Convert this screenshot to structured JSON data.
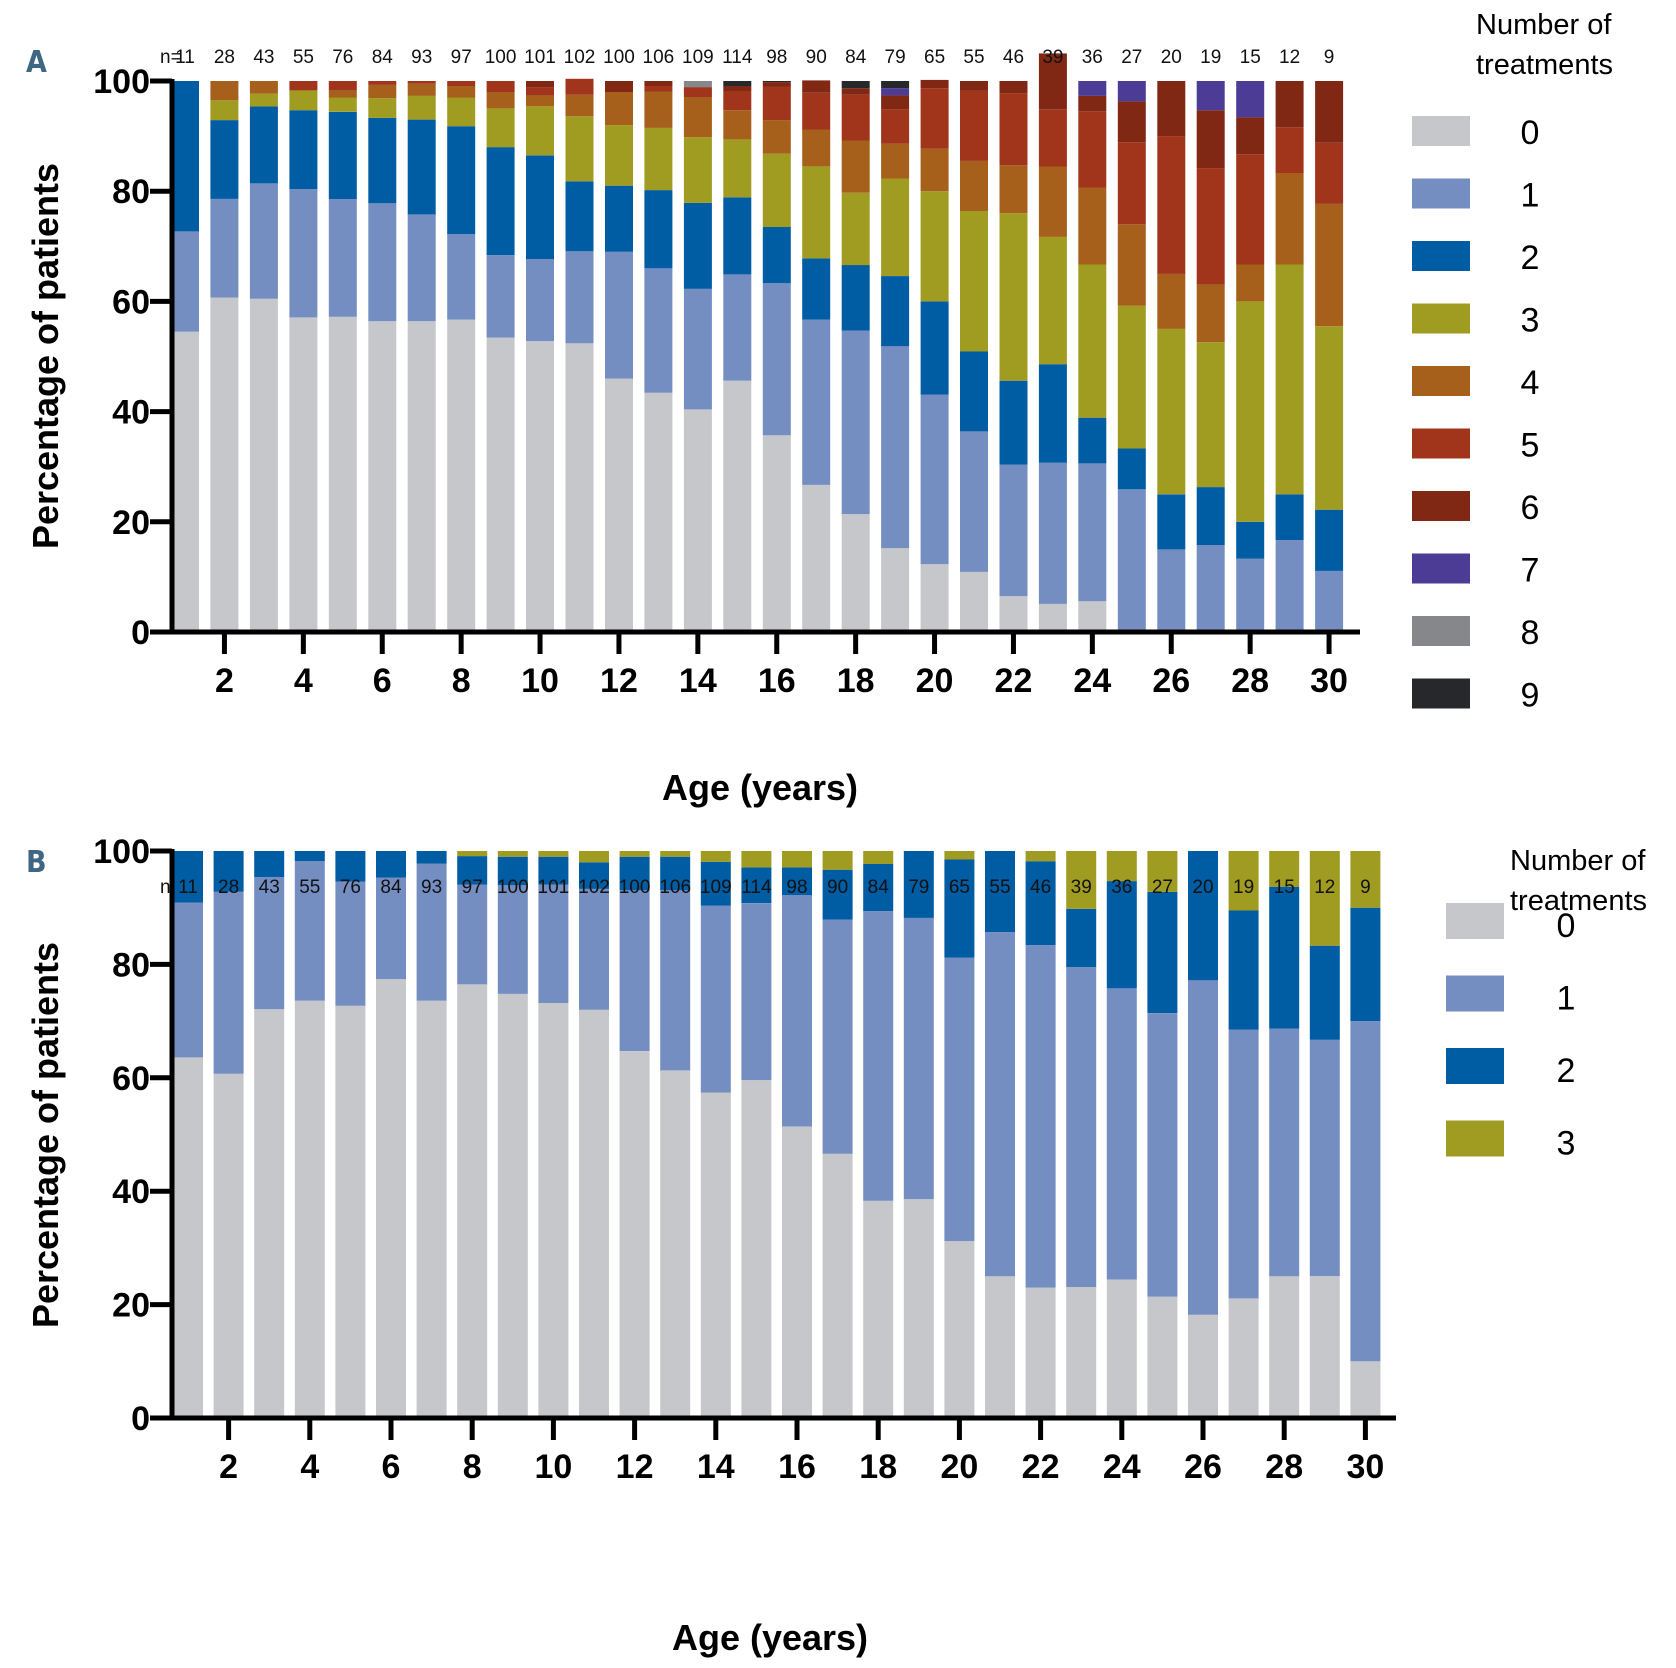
{
  "colors": {
    "0": "#c5c7cb",
    "1": "#758ec2",
    "2": "#005ca3",
    "3": "#a09c22",
    "4": "#a6601b",
    "5": "#a0351b",
    "6": "#812815",
    "7": "#4d3c96",
    "8": "#86878b",
    "9": "#27282c"
  },
  "chart_data": [
    {
      "panel": "A",
      "type": "bar",
      "stacked": true,
      "xlabel": "Age (years)",
      "ylabel": "Percentage of patients",
      "ylim": [
        0,
        100
      ],
      "yticks": [
        0,
        20,
        40,
        60,
        80,
        100
      ],
      "xticks": [
        2,
        4,
        6,
        8,
        10,
        12,
        14,
        16,
        18,
        20,
        22,
        24,
        26,
        28,
        30
      ],
      "n_prefix": "n=",
      "legend_title": [
        "Number of",
        "treatments"
      ],
      "legend_position": "right",
      "categories": [
        1,
        2,
        3,
        4,
        5,
        6,
        7,
        8,
        9,
        10,
        11,
        12,
        13,
        14,
        15,
        16,
        17,
        18,
        19,
        20,
        21,
        22,
        23,
        24,
        25,
        26,
        27,
        28,
        29,
        30
      ],
      "n": [
        11,
        28,
        43,
        55,
        76,
        84,
        93,
        97,
        100,
        101,
        102,
        100,
        106,
        109,
        114,
        98,
        90,
        84,
        79,
        65,
        55,
        46,
        39,
        36,
        27,
        20,
        19,
        15,
        12,
        9
      ],
      "series": [
        {
          "name": "0",
          "values": [
            54.5,
            60.7,
            60.5,
            57.1,
            57.2,
            56.4,
            56.4,
            56.7,
            53.4,
            52.8,
            52.4,
            46.0,
            43.4,
            40.4,
            45.6,
            35.7,
            26.7,
            21.4,
            15.2,
            12.3,
            10.9,
            6.5,
            5.1,
            5.6,
            0,
            0,
            0,
            0,
            0,
            0
          ]
        },
        {
          "name": "1",
          "values": [
            18.2,
            17.9,
            20.9,
            23.3,
            21.4,
            21.4,
            19.4,
            15.5,
            15.0,
            14.9,
            16.7,
            23.0,
            22.6,
            21.9,
            19.3,
            27.6,
            30.0,
            33.3,
            36.7,
            30.8,
            25.5,
            23.9,
            25.6,
            25.0,
            25.9,
            15.0,
            15.8,
            13.3,
            16.7,
            11.1
          ]
        },
        {
          "name": "2",
          "values": [
            27.3,
            14.3,
            14.0,
            14.3,
            15.8,
            15.5,
            17.2,
            19.6,
            19.6,
            18.8,
            12.7,
            12.0,
            14.2,
            15.6,
            14.0,
            10.2,
            11.1,
            11.9,
            12.7,
            16.9,
            14.5,
            15.2,
            17.9,
            8.3,
            7.4,
            10.0,
            10.5,
            6.7,
            8.3,
            11.1
          ]
        },
        {
          "name": "3",
          "values": [
            0,
            3.6,
            2.3,
            3.6,
            2.6,
            3.6,
            4.3,
            5.2,
            7.0,
            8.9,
            11.8,
            11.0,
            11.3,
            11.9,
            10.5,
            13.3,
            16.7,
            13.1,
            17.7,
            20.0,
            25.5,
            30.4,
            23.1,
            27.8,
            25.9,
            30.0,
            26.3,
            40.0,
            41.7,
            33.3
          ]
        },
        {
          "name": "4",
          "values": [
            0,
            3.5,
            2.3,
            0,
            1.3,
            2.4,
            2.2,
            2.1,
            3.0,
            2.0,
            3.9,
            6.0,
            6.6,
            7.3,
            5.3,
            6.1,
            6.7,
            9.5,
            6.3,
            7.7,
            9.1,
            8.7,
            12.8,
            13.9,
            14.8,
            10.0,
            10.5,
            6.7,
            16.6,
            22.2
          ]
        },
        {
          "name": "5",
          "values": [
            0,
            0,
            0,
            1.7,
            1.7,
            0.7,
            0.5,
            0.9,
            2.0,
            1.5,
            2.9,
            0,
            1.0,
            1.8,
            3.5,
            6.1,
            6.7,
            8.3,
            6.3,
            11.0,
            12.7,
            13.1,
            10.3,
            13.9,
            14.9,
            25.0,
            21.1,
            20.0,
            8.3,
            11.1
          ]
        },
        {
          "name": "6",
          "values": [
            0,
            0,
            0,
            0,
            0,
            0,
            0,
            0,
            0,
            1.1,
            0,
            2.0,
            0.9,
            0,
            0.9,
            0.8,
            2.2,
            1.2,
            2.5,
            1.5,
            1.8,
            2.2,
            10.2,
            2.8,
            7.4,
            10.0,
            10.5,
            6.7,
            8.4,
            11.2
          ]
        },
        {
          "name": "7",
          "values": [
            0,
            0,
            0,
            0,
            0,
            0,
            0,
            0,
            0,
            0,
            0,
            0,
            0,
            0,
            0,
            0,
            0,
            0,
            1.3,
            0,
            0,
            0,
            0,
            2.7,
            3.7,
            0,
            5.3,
            6.6,
            0,
            0
          ]
        },
        {
          "name": "8",
          "values": [
            0,
            0,
            0,
            0,
            0,
            0,
            0,
            0,
            0,
            0,
            0,
            0,
            0,
            1.1,
            0,
            0,
            0,
            0,
            0,
            0,
            0,
            0,
            0,
            0,
            0,
            0,
            0,
            0,
            0,
            0
          ]
        },
        {
          "name": "9",
          "values": [
            0,
            0,
            0,
            0,
            0,
            0,
            0,
            0,
            0,
            0,
            0,
            0,
            0,
            0,
            0.9,
            0.2,
            0,
            1.3,
            1.3,
            0,
            0,
            0,
            0,
            0,
            0,
            0,
            0,
            0,
            0,
            0
          ]
        }
      ]
    },
    {
      "panel": "B",
      "type": "bar",
      "stacked": true,
      "xlabel": "Age (years)",
      "ylabel": "Percentage of patients",
      "ylim": [
        0,
        100
      ],
      "yticks": [
        0,
        20,
        40,
        60,
        80,
        100
      ],
      "xticks": [
        2,
        4,
        6,
        8,
        10,
        12,
        14,
        16,
        18,
        20,
        22,
        24,
        26,
        28,
        30
      ],
      "n_prefix": "n=",
      "legend_title": [
        "Number of",
        "treatments"
      ],
      "legend_position": "right",
      "categories": [
        1,
        2,
        3,
        4,
        5,
        6,
        7,
        8,
        9,
        10,
        11,
        12,
        13,
        14,
        15,
        16,
        17,
        18,
        19,
        20,
        21,
        22,
        23,
        24,
        25,
        26,
        27,
        28,
        29,
        30
      ],
      "n": [
        11,
        28,
        43,
        55,
        76,
        84,
        93,
        97,
        100,
        101,
        102,
        100,
        106,
        109,
        114,
        98,
        90,
        84,
        79,
        65,
        55,
        46,
        39,
        36,
        27,
        20,
        19,
        15,
        12,
        9
      ],
      "series": [
        {
          "name": "0",
          "values": [
            63.6,
            60.7,
            72.1,
            73.6,
            72.7,
            77.4,
            73.6,
            76.5,
            74.8,
            73.2,
            72.0,
            64.7,
            61.3,
            57.4,
            59.6,
            51.4,
            46.6,
            38.3,
            38.6,
            31.2,
            25.0,
            23.0,
            23.1,
            24.4,
            21.4,
            18.2,
            21.1,
            25.0,
            25.0,
            10.0
          ]
        },
        {
          "name": "1",
          "values": [
            27.3,
            32.1,
            23.3,
            24.6,
            21.9,
            17.9,
            24.2,
            17.6,
            19.2,
            20.9,
            21.3,
            28.4,
            31.8,
            33.0,
            31.2,
            40.8,
            41.3,
            51.1,
            49.6,
            50.0,
            60.7,
            60.4,
            56.4,
            51.4,
            50.0,
            59.0,
            47.4,
            43.7,
            41.7,
            60.0
          ]
        },
        {
          "name": "2",
          "values": [
            9.1,
            7.2,
            4.6,
            1.8,
            5.4,
            4.7,
            2.2,
            5.0,
            5.0,
            4.9,
            4.7,
            5.9,
            5.9,
            7.7,
            6.3,
            4.9,
            8.8,
            8.3,
            11.8,
            17.3,
            14.3,
            14.8,
            10.3,
            18.9,
            21.4,
            22.8,
            21.0,
            25.0,
            16.6,
            20.0
          ]
        },
        {
          "name": "3",
          "values": [
            0,
            0,
            0,
            0,
            0,
            0,
            0,
            0.9,
            1.0,
            1.0,
            2.0,
            1.0,
            1.0,
            1.9,
            2.9,
            2.9,
            3.3,
            2.3,
            0,
            1.5,
            0,
            1.8,
            10.2,
            5.3,
            7.2,
            0,
            10.5,
            6.3,
            16.7,
            10.0
          ]
        }
      ]
    }
  ]
}
